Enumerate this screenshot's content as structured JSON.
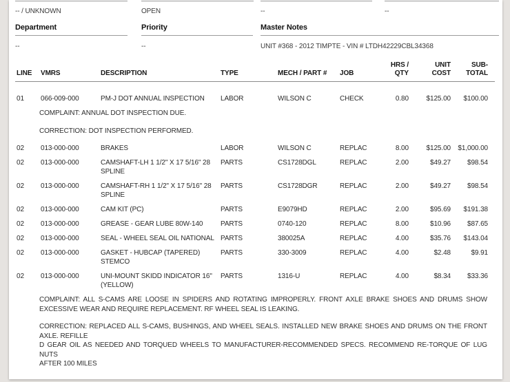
{
  "colors": {
    "background": "#e6e3e0",
    "card": "#ffffff",
    "divider_gray": "#9b9b9b",
    "text": "#2a2a2a"
  },
  "header_fields": {
    "row1": {
      "field1_value": "-- / UNKNOWN",
      "field2_value": "OPEN",
      "field3_value": "--",
      "field4_value": "--"
    },
    "department_label": "Department",
    "department_value": "--",
    "priority_label": "Priority",
    "priority_value": "--",
    "master_notes_label": "Master Notes",
    "master_notes_value": "UNIT #368 - 2012 TIMPTE - VIN # LTDH42229CBL34368"
  },
  "table": {
    "headers": {
      "line": "LINE",
      "vmrs": "VMRS",
      "description": "DESCRIPTION",
      "type": "TYPE",
      "mech_part": "MECH / PART #",
      "job": "JOB",
      "hrs_qty": "HRS /\nQTY",
      "unit_cost": "UNIT\nCOST",
      "sub_total": "SUB-\nTOTAL"
    },
    "rows": [
      {
        "line": "01",
        "vmrs": "066-009-000",
        "description": "PM-J DOT ANNUAL INSPECTION",
        "type": "LABOR",
        "mech_part": "WILSON C",
        "job": "CHECK",
        "hrs_qty": "0.80",
        "unit_cost": "$125.00",
        "sub_total": "$100.00",
        "notes": [
          "COMPLAINT: ANNUAL DOT INSPECTION DUE.",
          "CORRECTION: DOT INSPECTION PERFORMED."
        ]
      },
      {
        "line": "02",
        "vmrs": "013-000-000",
        "description": "BRAKES",
        "type": "LABOR",
        "mech_part": "WILSON C",
        "job": "REPLAC",
        "hrs_qty": "8.00",
        "unit_cost": "$125.00",
        "sub_total": "$1,000.00",
        "notes": []
      },
      {
        "line": "02",
        "vmrs": "013-000-000",
        "description": "CAMSHAFT-LH 1 1/2\" X 17 5/16\" 28 SPLINE",
        "type": "PARTS",
        "mech_part": "CS1728DGL",
        "job": "REPLAC",
        "hrs_qty": "2.00",
        "unit_cost": "$49.27",
        "sub_total": "$98.54",
        "notes": []
      },
      {
        "line": "02",
        "vmrs": "013-000-000",
        "description": "CAMSHAFT-RH 1 1/2\" X 17 5/16\" 28 SPLINE",
        "type": "PARTS",
        "mech_part": "CS1728DGR",
        "job": "REPLAC",
        "hrs_qty": "2.00",
        "unit_cost": "$49.27",
        "sub_total": "$98.54",
        "notes": []
      },
      {
        "line": "02",
        "vmrs": "013-000-000",
        "description": "CAM KIT (PC)",
        "type": "PARTS",
        "mech_part": "E9079HD",
        "job": "REPLAC",
        "hrs_qty": "2.00",
        "unit_cost": "$95.69",
        "sub_total": "$191.38",
        "notes": []
      },
      {
        "line": "02",
        "vmrs": "013-000-000",
        "description": "GREASE - GEAR LUBE 80W-140",
        "type": "PARTS",
        "mech_part": "0740-120",
        "job": "REPLAC",
        "hrs_qty": "8.00",
        "unit_cost": "$10.96",
        "sub_total": "$87.65",
        "notes": []
      },
      {
        "line": "02",
        "vmrs": "013-000-000",
        "description": "SEAL - WHEEL SEAL OIL NATIONAL",
        "type": "PARTS",
        "mech_part": "380025A",
        "job": "REPLAC",
        "hrs_qty": "4.00",
        "unit_cost": "$35.76",
        "sub_total": "$143.04",
        "notes": []
      },
      {
        "line": "02",
        "vmrs": "013-000-000",
        "description": "GASKET - HUBCAP (TAPERED) STEMCO",
        "type": "PARTS",
        "mech_part": "330-3009",
        "job": "REPLAC",
        "hrs_qty": "4.00",
        "unit_cost": "$2.48",
        "sub_total": "$9.91",
        "notes": []
      },
      {
        "line": "02",
        "vmrs": "013-000-000",
        "description": "UNI-MOUNT SKIDD INDICATOR 16\" (YELLOW)",
        "type": "PARTS",
        "mech_part": "1316-U",
        "job": "REPLAC",
        "hrs_qty": "4.00",
        "unit_cost": "$8.34",
        "sub_total": "$33.36",
        "notes": [
          "COMPLAINT: ALL S-CAMS ARE LOOSE IN SPIDERS AND ROTATING IMPROPERLY. FRONT AXLE BRAKE SHOES AND DRUMS SHOW EXCESSIVE WEAR AND REQUIRE REPLACEMENT. RF WHEEL SEAL IS LEAKING.",
          "CORRECTION: REPLACED ALL S-CAMS, BUSHINGS, AND WHEEL SEALS. INSTALLED NEW BRAKE SHOES AND DRUMS ON THE FRONT AXLE. REFILLE\nD GEAR OIL AS NEEDED AND TORQUED WHEELS TO MANUFACTURER-RECOMMENDED SPECS. RECOMMEND RE-TORQUE OF LUG NUTS\nAFTER 100 MILES"
        ]
      }
    ]
  }
}
